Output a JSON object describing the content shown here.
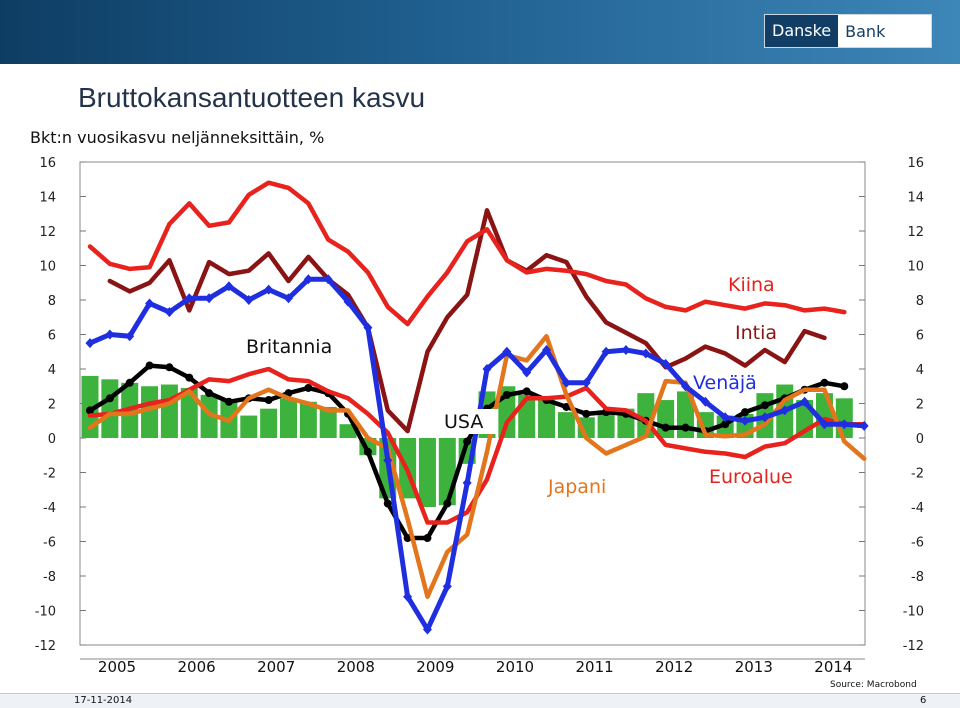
{
  "header": {
    "logo_part1": "Danske",
    "logo_part2": "Bank",
    "title": "Bruttokansantuotteen kasvu",
    "subtitle": "Bkt:n vuosikasvu neljänneksittäin, %"
  },
  "footer": {
    "source": "Source: Macrobond",
    "date": "17-11-2014",
    "page": "6"
  },
  "colors": {
    "bars": "#3db33d",
    "kiina": "#e8221c",
    "intia": "#8a1414",
    "venaja": "#1f2fe0",
    "usa": "#000000",
    "euroalue": "#e8221c",
    "japani": "#e3761c"
  },
  "chart_data": {
    "type": "line",
    "title": "Bruttokansantuotteen kasvu",
    "subtitle": "Bkt:n vuosikasvu neljänneksittäin, %",
    "x_start": "2005Q1",
    "x_labels": [
      "2005",
      "2006",
      "2007",
      "2008",
      "2009",
      "2010",
      "2011",
      "2012",
      "2013",
      "2014"
    ],
    "ylim": [
      -12,
      16
    ],
    "y_ticks": [
      16,
      14,
      12,
      10,
      8,
      6,
      4,
      2,
      0,
      -2,
      -4,
      -6,
      -8,
      -10,
      -12
    ],
    "grid": false,
    "annotations": [
      "Kiina",
      "Intia",
      "Britannia",
      "Venäjä",
      "USA",
      "Japani",
      "Euroalue"
    ],
    "bars": {
      "name": "Britannia",
      "values": [
        3.6,
        3.4,
        3.2,
        3.0,
        3.1,
        2.9,
        2.5,
        2.2,
        1.3,
        1.7,
        2.3,
        2.1,
        1.8,
        0.8,
        -1.0,
        -3.5,
        -3.5,
        -4.0,
        -3.9,
        -1.5,
        2.7,
        3.0,
        2.5,
        2.2,
        1.5,
        1.2,
        1.6,
        1.7,
        2.6,
        2.2,
        2.7,
        1.5,
        1.3,
        1.4,
        2.6,
        3.1,
        2.2,
        2.6,
        2.3
      ]
    },
    "series": [
      {
        "name": "Kiina",
        "values": [
          11.1,
          10.1,
          9.8,
          9.9,
          12.4,
          13.6,
          12.3,
          12.5,
          14.1,
          14.8,
          14.5,
          13.6,
          11.5,
          10.8,
          9.6,
          7.6,
          6.6,
          8.2,
          9.6,
          11.4,
          12.1,
          10.3,
          9.6,
          9.8,
          9.7,
          9.5,
          9.1,
          8.9,
          8.1,
          7.6,
          7.4,
          7.9,
          7.7,
          7.5,
          7.8,
          7.7,
          7.4,
          7.5,
          7.3
        ]
      },
      {
        "name": "Intia",
        "values": [
          null,
          9.1,
          8.5,
          9.0,
          10.3,
          7.4,
          10.2,
          9.5,
          9.7,
          10.7,
          9.1,
          10.5,
          9.2,
          8.3,
          6.4,
          1.6,
          0.4,
          5.0,
          7.0,
          8.3,
          13.2,
          10.3,
          9.7,
          10.6,
          10.2,
          8.2,
          6.7,
          6.1,
          5.5,
          4.1,
          4.6,
          5.3,
          4.9,
          4.2,
          5.1,
          4.4,
          6.2,
          5.8,
          null
        ]
      },
      {
        "name": "Venäjä",
        "values": [
          5.5,
          6.0,
          5.9,
          7.8,
          7.3,
          8.1,
          8.1,
          8.8,
          8.0,
          8.6,
          8.1,
          9.2,
          9.2,
          7.9,
          6.4,
          -1.3,
          -9.2,
          -11.1,
          -8.6,
          -2.6,
          4.0,
          5.0,
          3.8,
          5.1,
          3.2,
          3.2,
          5.0,
          5.1,
          4.9,
          4.3,
          3.0,
          2.1,
          1.2,
          1.0,
          1.2,
          1.6,
          2.1,
          0.8,
          0.8,
          0.7
        ]
      },
      {
        "name": "USA",
        "values": [
          1.6,
          2.3,
          3.2,
          4.2,
          4.1,
          3.5,
          2.6,
          2.1,
          2.3,
          2.2,
          2.6,
          2.9,
          2.6,
          1.4,
          -0.8,
          -3.8,
          -5.8,
          -5.8,
          -3.8,
          -0.2,
          1.7,
          2.5,
          2.7,
          2.2,
          1.8,
          1.4,
          1.5,
          1.4,
          1.0,
          0.6,
          0.6,
          0.4,
          0.8,
          1.5,
          1.9,
          2.3,
          2.8,
          3.2,
          3.0
        ]
      },
      {
        "name": "Euroalue",
        "values": [
          1.3,
          1.4,
          1.7,
          2.0,
          2.2,
          2.8,
          3.4,
          3.3,
          3.7,
          4.0,
          3.4,
          3.3,
          2.7,
          2.3,
          1.4,
          0.3,
          -1.9,
          -4.9,
          -4.9,
          -4.3,
          -2.4,
          0.9,
          2.3,
          2.3,
          2.4,
          2.9,
          1.7,
          1.6,
          1.0,
          -0.4,
          -0.6,
          -0.8,
          -0.9,
          -1.1,
          -0.5,
          -0.3,
          0.4,
          1.1,
          0.8,
          0.8
        ]
      },
      {
        "name": "Japani",
        "values": [
          0.6,
          1.4,
          1.4,
          1.7,
          2.0,
          2.7,
          1.4,
          1.0,
          2.3,
          2.8,
          2.3,
          2.0,
          1.6,
          1.6,
          0.0,
          -0.6,
          -4.7,
          -9.2,
          -6.6,
          -5.6,
          -0.8,
          4.8,
          4.5,
          5.9,
          2.5,
          0.0,
          -0.9,
          -0.4,
          0.1,
          3.3,
          3.2,
          0.2,
          0.1,
          0.2,
          0.8,
          2.2,
          2.8,
          2.8,
          -0.2,
          -1.2
        ]
      }
    ]
  }
}
